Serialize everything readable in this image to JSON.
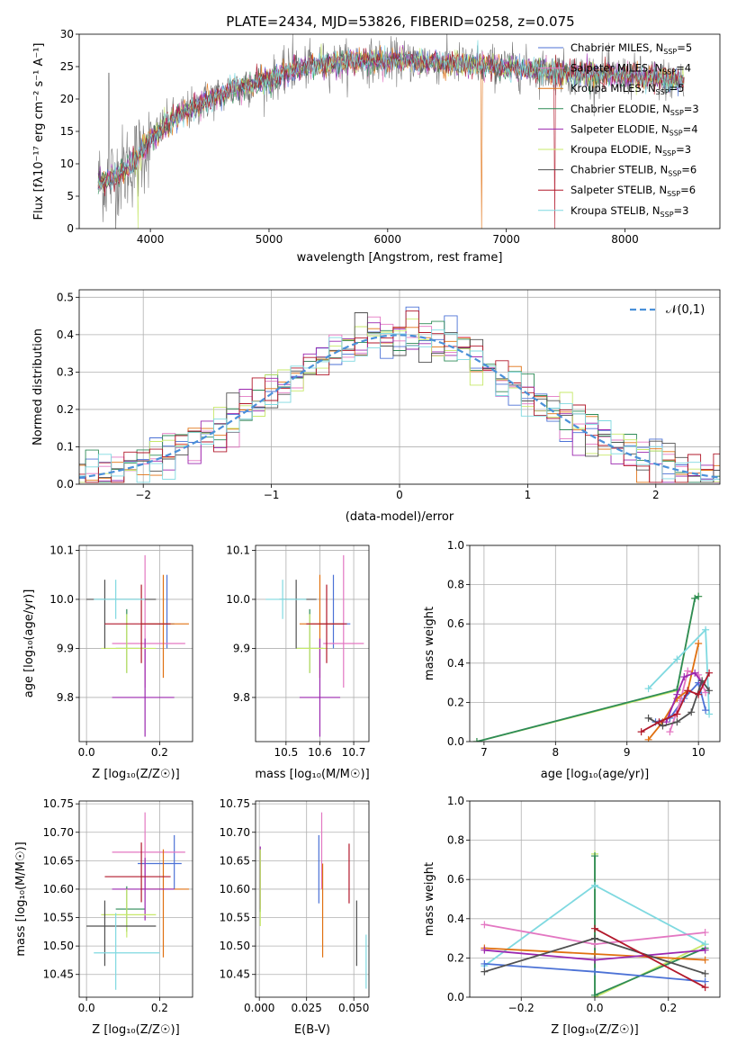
{
  "figure_title": "PLATE=2434, MJD=53826, FIBERID=0258, z=0.075",
  "colors": {
    "Chabrier MILES": "#4c72d6",
    "Salpeter MILES": "#e377c2",
    "Kroupa MILES": "#e07010",
    "Chabrier ELODIE": "#2e8b57",
    "Salpeter ELODIE": "#9b27af",
    "Kroupa ELODIE": "#c7e86a",
    "Chabrier STELIB": "#505050",
    "Salpeter STELIB": "#b2182b",
    "Kroupa STELIB": "#7fd9e0",
    "normal_curve": "#4a90d9"
  },
  "chart_data": [
    {
      "id": "spectrum",
      "type": "line",
      "title": "PLATE=2434, MJD=53826, FIBERID=0258, z=0.075",
      "xlabel": "wavelength [Angstrom, rest frame]",
      "ylabel": "Flux [fλ10⁻¹⁷ erg cm⁻² s⁻¹ A⁻¹]",
      "xlim": [
        3400,
        8800
      ],
      "ylim": [
        0,
        30
      ],
      "xticks": [
        4000,
        5000,
        6000,
        7000,
        8000
      ],
      "yticks": [
        0,
        5,
        10,
        15,
        20,
        25,
        30
      ],
      "legend_position": "right",
      "legend": [
        {
          "label": "Chabrier MILES, N",
          "sub": "SSP",
          "suffix": "=5"
        },
        {
          "label": "Salpeter MILES, N",
          "sub": "SSP",
          "suffix": "=4"
        },
        {
          "label": "Kroupa MILES, N",
          "sub": "SSP",
          "suffix": "=5"
        },
        {
          "label": "Chabrier ELODIE, N",
          "sub": "SSP",
          "suffix": "=3"
        },
        {
          "label": "Salpeter ELODIE, N",
          "sub": "SSP",
          "suffix": "=4"
        },
        {
          "label": "Kroupa ELODIE, N",
          "sub": "SSP",
          "suffix": "=3"
        },
        {
          "label": "Chabrier STELIB, N",
          "sub": "SSP",
          "suffix": "=6"
        },
        {
          "label": "Salpeter STELIB, N",
          "sub": "SSP",
          "suffix": "=6"
        },
        {
          "label": "Kroupa STELIB, N",
          "sub": "SSP",
          "suffix": "=3"
        }
      ],
      "continuum": [
        [
          3550,
          7
        ],
        [
          3700,
          8
        ],
        [
          3900,
          11
        ],
        [
          4000,
          14
        ],
        [
          4200,
          17
        ],
        [
          4500,
          20
        ],
        [
          4700,
          21.5
        ],
        [
          5000,
          23
        ],
        [
          5200,
          24.5
        ],
        [
          5500,
          25.5
        ],
        [
          6000,
          26
        ],
        [
          6500,
          25.5
        ],
        [
          7000,
          25
        ],
        [
          7500,
          24
        ],
        [
          8000,
          23.5
        ],
        [
          8400,
          23
        ],
        [
          8500,
          22.5
        ]
      ]
    },
    {
      "id": "residuals",
      "type": "histogram",
      "xlabel": "(data-model)/error",
      "ylabel": "Normed distribution",
      "xlim": [
        -2.5,
        2.5
      ],
      "ylim": [
        0,
        0.52
      ],
      "xticks": [
        -2,
        -1,
        0,
        1,
        2
      ],
      "yticks": [
        0.0,
        0.1,
        0.2,
        0.3,
        0.4,
        0.5
      ],
      "legend": "𝒩(0,1)",
      "legend_position": "top-right",
      "bin_width": 0.1,
      "grid": true
    },
    {
      "id": "age-vs-Z",
      "type": "scatter",
      "xlabel": "Z [log₁₀(Z/Z☉)]",
      "ylabel": "age [log₁₀(age/yr)]",
      "xlim": [
        -0.02,
        0.29
      ],
      "ylim": [
        9.71,
        10.11
      ],
      "xticks": [
        0.0,
        0.2
      ],
      "yticks": [
        9.8,
        9.9,
        10.0,
        10.1
      ],
      "points": [
        {
          "model": "Chabrier MILES",
          "x": 0.22,
          "xerr": [
            0.07,
            0.02
          ],
          "y": 9.95,
          "yerr": [
            0.05,
            0.1
          ]
        },
        {
          "model": "Salpeter MILES",
          "x": 0.16,
          "xerr": [
            0.09,
            0.11
          ],
          "y": 9.91,
          "yerr": [
            0.09,
            0.18
          ]
        },
        {
          "model": "Kroupa MILES",
          "x": 0.21,
          "xerr": [
            0.06,
            0.07
          ],
          "y": 9.95,
          "yerr": [
            0.11,
            0.1
          ]
        },
        {
          "model": "Chabrier ELODIE",
          "x": 0.11,
          "xerr": [
            0.03,
            0.05
          ],
          "y": 9.9,
          "yerr": [
            0.05,
            0.08
          ]
        },
        {
          "model": "Salpeter ELODIE",
          "x": 0.16,
          "xerr": [
            0.09,
            0.08
          ],
          "y": 9.8,
          "yerr": [
            0.08,
            0.12
          ]
        },
        {
          "model": "Kroupa ELODIE",
          "x": 0.11,
          "xerr": [
            0.07,
            0.08
          ],
          "y": 9.9,
          "yerr": [
            0.05,
            0.07
          ]
        },
        {
          "model": "Chabrier STELIB",
          "x": 0.05,
          "xerr": [
            0.05,
            0.14
          ],
          "y": 10.0,
          "yerr": [
            0.1,
            0.04
          ]
        },
        {
          "model": "Salpeter STELIB",
          "x": 0.15,
          "xerr": [
            0.1,
            0.08
          ],
          "y": 9.95,
          "yerr": [
            0.08,
            0.08
          ]
        },
        {
          "model": "Kroupa STELIB",
          "x": 0.08,
          "xerr": [
            0.06,
            0.08
          ],
          "y": 10.0,
          "yerr": [
            0.04,
            0.04
          ]
        }
      ]
    },
    {
      "id": "age-vs-mass",
      "type": "scatter",
      "xlabel": "mass [log₁₀(M/M☉)]",
      "ylabel": "",
      "xlim": [
        10.41,
        10.745
      ],
      "ylim": [
        9.71,
        10.11
      ],
      "xticks": [
        10.5,
        10.6,
        10.7
      ],
      "yticks": [
        9.8,
        9.9,
        10.0,
        10.1
      ],
      "points": [
        {
          "model": "Chabrier MILES",
          "x": 10.64,
          "xerr": [
            0.04,
            0.05
          ],
          "y": 9.95,
          "yerr": [
            0.05,
            0.1
          ]
        },
        {
          "model": "Salpeter MILES",
          "x": 10.67,
          "xerr": [
            0.06,
            0.06
          ],
          "y": 9.91,
          "yerr": [
            0.09,
            0.18
          ]
        },
        {
          "model": "Kroupa MILES",
          "x": 10.6,
          "xerr": [
            0.06,
            0.07
          ],
          "y": 9.95,
          "yerr": [
            0.11,
            0.1
          ]
        },
        {
          "model": "Chabrier ELODIE",
          "x": 10.57,
          "xerr": [
            0.04,
            0.04
          ],
          "y": 9.9,
          "yerr": [
            0.05,
            0.08
          ]
        },
        {
          "model": "Salpeter ELODIE",
          "x": 10.6,
          "xerr": [
            0.06,
            0.06
          ],
          "y": 9.8,
          "yerr": [
            0.08,
            0.12
          ]
        },
        {
          "model": "Kroupa ELODIE",
          "x": 10.57,
          "xerr": [
            0.04,
            0.05
          ],
          "y": 9.9,
          "yerr": [
            0.05,
            0.07
          ]
        },
        {
          "model": "Chabrier STELIB",
          "x": 10.53,
          "xerr": [
            0.05,
            0.06
          ],
          "y": 10.0,
          "yerr": [
            0.1,
            0.04
          ]
        },
        {
          "model": "Salpeter STELIB",
          "x": 10.62,
          "xerr": [
            0.06,
            0.06
          ],
          "y": 9.95,
          "yerr": [
            0.08,
            0.08
          ]
        },
        {
          "model": "Kroupa STELIB",
          "x": 10.49,
          "xerr": [
            0.05,
            0.07
          ],
          "y": 10.0,
          "yerr": [
            0.04,
            0.04
          ]
        }
      ]
    },
    {
      "id": "mass-weight-vs-age",
      "type": "line",
      "xlabel": "age [log₁₀(age/yr)]",
      "ylabel": "mass weight",
      "xlim": [
        6.8,
        10.3
      ],
      "ylim": [
        0,
        1
      ],
      "xticks": [
        7,
        8,
        9,
        10
      ],
      "yticks": [
        0.0,
        0.2,
        0.4,
        0.6,
        0.8,
        1.0
      ],
      "grid": true,
      "series": [
        {
          "model": "Kroupa ELODIE",
          "x": [
            6.9,
            9.7,
            9.95,
            10.0
          ],
          "y": [
            0.0,
            0.26,
            0.73,
            0.74
          ]
        },
        {
          "model": "Chabrier ELODIE",
          "x": [
            6.9,
            9.7,
            9.95,
            10.0
          ],
          "y": [
            0.0,
            0.265,
            0.73,
            0.74
          ]
        },
        {
          "model": "Kroupa STELIB",
          "x": [
            9.3,
            9.7,
            10.1,
            10.15
          ],
          "y": [
            0.27,
            0.42,
            0.57,
            0.14
          ]
        },
        {
          "model": "Chabrier MILES",
          "x": [
            9.4,
            9.6,
            9.8,
            10.0,
            10.1
          ],
          "y": [
            0.1,
            0.12,
            0.22,
            0.3,
            0.16
          ]
        },
        {
          "model": "Salpeter MILES",
          "x": [
            9.6,
            9.75,
            9.85,
            10.0,
            10.1
          ],
          "y": [
            0.05,
            0.21,
            0.36,
            0.34,
            0.25
          ]
        },
        {
          "model": "Kroupa MILES",
          "x": [
            9.3,
            9.5,
            9.7,
            9.85,
            10.0
          ],
          "y": [
            0.01,
            0.1,
            0.22,
            0.26,
            0.5
          ]
        },
        {
          "model": "Salpeter ELODIE",
          "x": [
            9.55,
            9.7,
            9.8,
            9.95,
            10.05
          ],
          "y": [
            0.1,
            0.24,
            0.33,
            0.35,
            0.3
          ]
        },
        {
          "model": "Chabrier STELIB",
          "x": [
            9.3,
            9.5,
            9.7,
            9.9,
            10.05,
            10.15
          ],
          "y": [
            0.12,
            0.08,
            0.1,
            0.15,
            0.31,
            0.26
          ]
        },
        {
          "model": "Salpeter STELIB",
          "x": [
            9.2,
            9.45,
            9.7,
            9.85,
            10.0,
            10.15
          ],
          "y": [
            0.05,
            0.1,
            0.14,
            0.26,
            0.24,
            0.35
          ]
        }
      ]
    },
    {
      "id": "mass-vs-Z",
      "type": "scatter",
      "xlabel": "Z [log₁₀(Z/Z☉)]",
      "ylabel": "mass [log₁₀(M/M☉)]",
      "xlim": [
        -0.02,
        0.29
      ],
      "ylim": [
        10.41,
        10.755
      ],
      "xticks": [
        0.0,
        0.2
      ],
      "yticks": [
        10.45,
        10.5,
        10.55,
        10.6,
        10.65,
        10.7,
        10.75
      ],
      "points": [
        {
          "model": "Chabrier MILES",
          "x": 0.24,
          "xerr": [
            0.1,
            0.02
          ],
          "y": 10.645,
          "yerr": [
            0.045,
            0.05
          ]
        },
        {
          "model": "Salpeter MILES",
          "x": 0.16,
          "xerr": [
            0.09,
            0.11
          ],
          "y": 10.665,
          "yerr": [
            0.065,
            0.07
          ]
        },
        {
          "model": "Kroupa MILES",
          "x": 0.21,
          "xerr": [
            0.06,
            0.07
          ],
          "y": 10.6,
          "yerr": [
            0.12,
            0.07
          ]
        },
        {
          "model": "Chabrier ELODIE",
          "x": 0.11,
          "xerr": [
            0.03,
            0.05
          ],
          "y": 10.565,
          "yerr": [
            0.04,
            0.04
          ]
        },
        {
          "model": "Salpeter ELODIE",
          "x": 0.16,
          "xerr": [
            0.09,
            0.08
          ],
          "y": 10.6,
          "yerr": [
            0.055,
            0.055
          ]
        },
        {
          "model": "Kroupa ELODIE",
          "x": 0.11,
          "xerr": [
            0.07,
            0.08
          ],
          "y": 10.555,
          "yerr": [
            0.04,
            0.045
          ]
        },
        {
          "model": "Chabrier STELIB",
          "x": 0.05,
          "xerr": [
            0.05,
            0.14
          ],
          "y": 10.535,
          "yerr": [
            0.07,
            0.045
          ]
        },
        {
          "model": "Salpeter STELIB",
          "x": 0.15,
          "xerr": [
            0.1,
            0.08
          ],
          "y": 10.622,
          "yerr": [
            0.045,
            0.06
          ]
        },
        {
          "model": "Kroupa STELIB",
          "x": 0.08,
          "xerr": [
            0.06,
            0.12
          ],
          "y": 10.488,
          "yerr": [
            0.065,
            0.07
          ]
        }
      ]
    },
    {
      "id": "mass-vs-EBV",
      "type": "scatter",
      "xlabel": "E(B-V)",
      "ylabel": "",
      "xlim": [
        -0.002,
        0.058
      ],
      "ylim": [
        10.41,
        10.755
      ],
      "xticks": [
        0.0,
        0.025,
        0.05
      ],
      "yticks": [
        10.45,
        10.5,
        10.55,
        10.6,
        10.65,
        10.7,
        10.75
      ],
      "points": [
        {
          "model": "Chabrier MILES",
          "x": 0.0315,
          "y": 10.635,
          "yerr": [
            0.06,
            0.06
          ]
        },
        {
          "model": "Salpeter MILES",
          "x": 0.033,
          "y": 10.665,
          "yerr": [
            0.065,
            0.07
          ]
        },
        {
          "model": "Kroupa MILES",
          "x": 0.0335,
          "y": 10.57,
          "yerr": [
            0.09,
            0.075
          ]
        },
        {
          "model": "Chabrier ELODIE",
          "x": 0.0005,
          "y": 10.61,
          "yerr": [
            0.05,
            0.06
          ]
        },
        {
          "model": "Salpeter ELODIE",
          "x": 0.0005,
          "y": 10.615,
          "yerr": [
            0.05,
            0.06
          ]
        },
        {
          "model": "Kroupa ELODIE",
          "x": 0.0005,
          "y": 10.6,
          "yerr": [
            0.065,
            0.07
          ]
        },
        {
          "model": "Chabrier STELIB",
          "x": 0.0515,
          "y": 10.52,
          "yerr": [
            0.055,
            0.06
          ]
        },
        {
          "model": "Salpeter STELIB",
          "x": 0.0475,
          "y": 10.62,
          "yerr": [
            0.045,
            0.06
          ]
        },
        {
          "model": "Kroupa STELIB",
          "x": 0.0565,
          "y": 10.47,
          "yerr": [
            0.045,
            0.05
          ]
        }
      ]
    },
    {
      "id": "mass-weight-vs-Z",
      "type": "line",
      "xlabel": "Z [log₁₀(Z/Z☉)]",
      "ylabel": "mass weight",
      "xlim": [
        -0.34,
        0.34
      ],
      "ylim": [
        0,
        1
      ],
      "xticks": [
        -0.2,
        0.0,
        0.2
      ],
      "yticks": [
        0.0,
        0.2,
        0.4,
        0.6,
        0.8,
        1.0
      ],
      "grid": true,
      "series": [
        {
          "model": "Kroupa ELODIE",
          "x": [
            0.0,
            0.0,
            0.3
          ],
          "y": [
            0.73,
            0.0,
            0.27
          ]
        },
        {
          "model": "Chabrier ELODIE",
          "x": [
            0.0,
            0.0,
            0.3
          ],
          "y": [
            0.72,
            0.01,
            0.25
          ]
        },
        {
          "model": "Kroupa STELIB",
          "x": [
            -0.3,
            0.0,
            0.3
          ],
          "y": [
            0.16,
            0.57,
            0.27
          ]
        },
        {
          "model": "Salpeter MILES",
          "x": [
            -0.3,
            0.0,
            0.3
          ],
          "y": [
            0.37,
            0.27,
            0.33
          ]
        },
        {
          "model": "Chabrier MILES",
          "x": [
            -0.3,
            0.0,
            0.3
          ],
          "y": [
            0.17,
            0.13,
            0.08
          ]
        },
        {
          "model": "Kroupa MILES",
          "x": [
            -0.3,
            0.0,
            0.3
          ],
          "y": [
            0.25,
            0.22,
            0.19
          ]
        },
        {
          "model": "Salpeter ELODIE",
          "x": [
            -0.3,
            0.0,
            0.3
          ],
          "y": [
            0.24,
            0.19,
            0.24
          ]
        },
        {
          "model": "Chabrier STELIB",
          "x": [
            -0.3,
            0.0,
            0.3
          ],
          "y": [
            0.13,
            0.3,
            0.12
          ]
        },
        {
          "model": "Salpeter STELIB",
          "x": [
            0.0,
            0.3
          ],
          "y": [
            0.35,
            0.05
          ]
        }
      ]
    }
  ]
}
